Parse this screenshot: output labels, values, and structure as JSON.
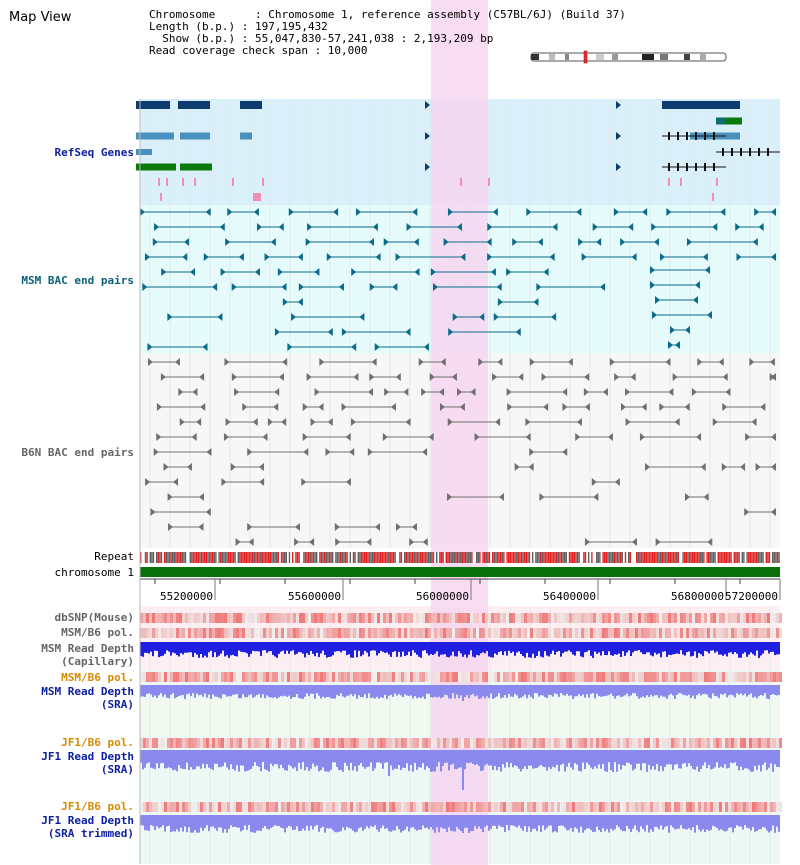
{
  "title": "Map View",
  "info": {
    "chromosome": "Chromosome      : Chromosome 1, reference assembly (C57BL/6J) (Build 37)",
    "length": "Length (b.p.) : 197,195,432",
    "show": "  Show (b.p.) : 55,047,830-57,241,038 : 2,193,209 bp",
    "coverage": "Read coverage check span : 10,000"
  },
  "tracks": {
    "refseq": "RefSeq Genes",
    "msm_bac": "MSM BAC end pairs",
    "b6n_bac": "B6N BAC end pairs",
    "repeat": "Repeat",
    "chromosome": "chromosome 1",
    "dbsnp": "dbSNP(Mouse)",
    "msm_b6_pol_1": "MSM/B6 pol.",
    "msm_depth_cap_1": "MSM Read Depth",
    "msm_depth_cap_2": "(Capillary)",
    "msm_b6_pol_2": "MSM/B6 pol.",
    "msm_depth_sra_1": "MSM Read Depth",
    "msm_depth_sra_2": "(SRA)",
    "jf1_pol_1": "JF1/B6 pol.",
    "jf1_depth_sra_1": "JF1 Read Depth",
    "jf1_depth_sra_2": "(SRA)",
    "jf1_pol_2": "JF1/B6 pol.",
    "jf1_depth_trim_1": "JF1 Read Depth",
    "jf1_depth_trim_2": "(SRA trimmed)"
  },
  "axis": {
    "ticks": [
      "55200000",
      "55600000",
      "56000000",
      "56400000",
      "56800000",
      "57200000"
    ]
  },
  "colors": {
    "refseq_bg": "#d9f0fa",
    "msm_bg": "#e6fbfb",
    "b6n_bg": "#f7f7f7",
    "highlight": "#f6d6f0",
    "dark_gene": "#0d3c6e",
    "mid_gene": "#4a92bd",
    "green_gene": "#0a7a0a",
    "chromosome_bar": "#0a700a",
    "msm_label": "#0c5f79",
    "b6n_label": "#666666",
    "blue_label": "#0b1fa0",
    "orange_label": "#d98b00",
    "depth_dark": "#1f1fe0",
    "depth_light": "#8a8aee"
  }
}
